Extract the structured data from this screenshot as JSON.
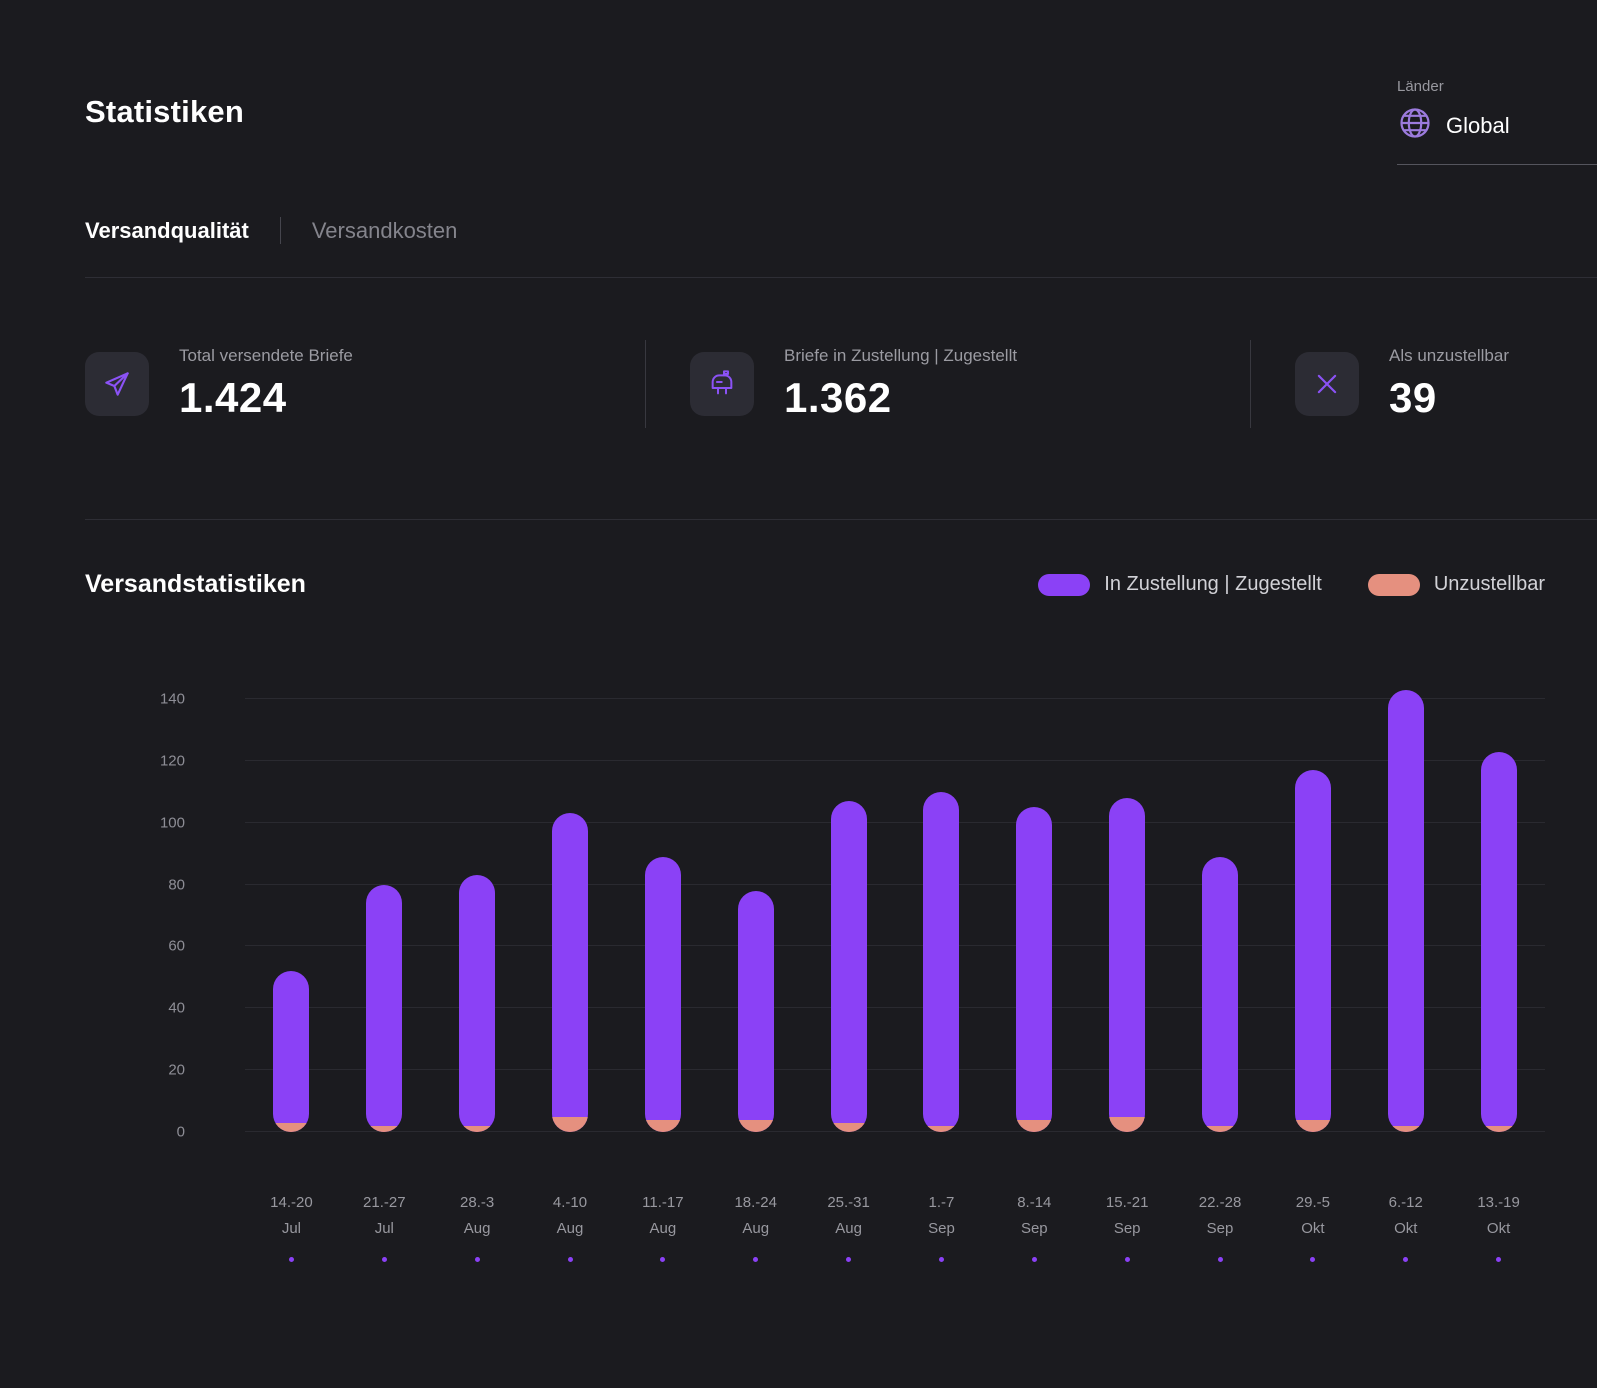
{
  "page": {
    "title": "Statistiken"
  },
  "country_selector": {
    "label": "Länder",
    "value": "Global",
    "icon": "globe-icon"
  },
  "tabs": [
    {
      "label": "Versandqualität",
      "active": true
    },
    {
      "label": "Versandkosten",
      "active": false
    }
  ],
  "stats": [
    {
      "icon": "send-icon",
      "label": "Total versendete Briefe",
      "value": "1.424"
    },
    {
      "icon": "mailbox-icon",
      "label": "Briefe in Zustellung | Zugestellt",
      "value": "1.362"
    },
    {
      "icon": "x-icon",
      "label": "Als unzustellbar",
      "value": "39"
    }
  ],
  "colors": {
    "accent_purple": "#8b41f6",
    "salmon": "#e5907f",
    "icon_purple": "#8b52f5",
    "background": "#1b1b1f"
  },
  "chart_data": {
    "type": "bar",
    "stacked": true,
    "title": "Versandstatistiken",
    "xlabel": "",
    "ylabel": "",
    "ylim": [
      0,
      140
    ],
    "yticks": [
      0,
      20,
      40,
      60,
      80,
      100,
      120,
      140
    ],
    "grid": true,
    "legend_position": "top-right",
    "categories": [
      [
        "14.-20",
        "Jul"
      ],
      [
        "21.-27",
        "Jul"
      ],
      [
        "28.-3",
        "Aug"
      ],
      [
        "4.-10",
        "Aug"
      ],
      [
        "11.-17",
        "Aug"
      ],
      [
        "18.-24",
        "Aug"
      ],
      [
        "25.-31",
        "Aug"
      ],
      [
        "1.-7",
        "Sep"
      ],
      [
        "8.-14",
        "Sep"
      ],
      [
        "15.-21",
        "Sep"
      ],
      [
        "22.-28",
        "Sep"
      ],
      [
        "29.-5",
        "Okt"
      ],
      [
        "6.-12",
        "Okt"
      ],
      [
        "13.-19",
        "Okt"
      ]
    ],
    "series": [
      {
        "name": "In Zustellung | Zugestellt",
        "color": "#8b41f6",
        "values": [
          49,
          78,
          81,
          98,
          85,
          74,
          104,
          108,
          101,
          103,
          87,
          113,
          141,
          121
        ]
      },
      {
        "name": "Unzustellbar",
        "color": "#e5907f",
        "values": [
          3,
          2,
          2,
          5,
          4,
          4,
          3,
          2,
          4,
          5,
          2,
          4,
          2,
          2
        ]
      }
    ]
  }
}
